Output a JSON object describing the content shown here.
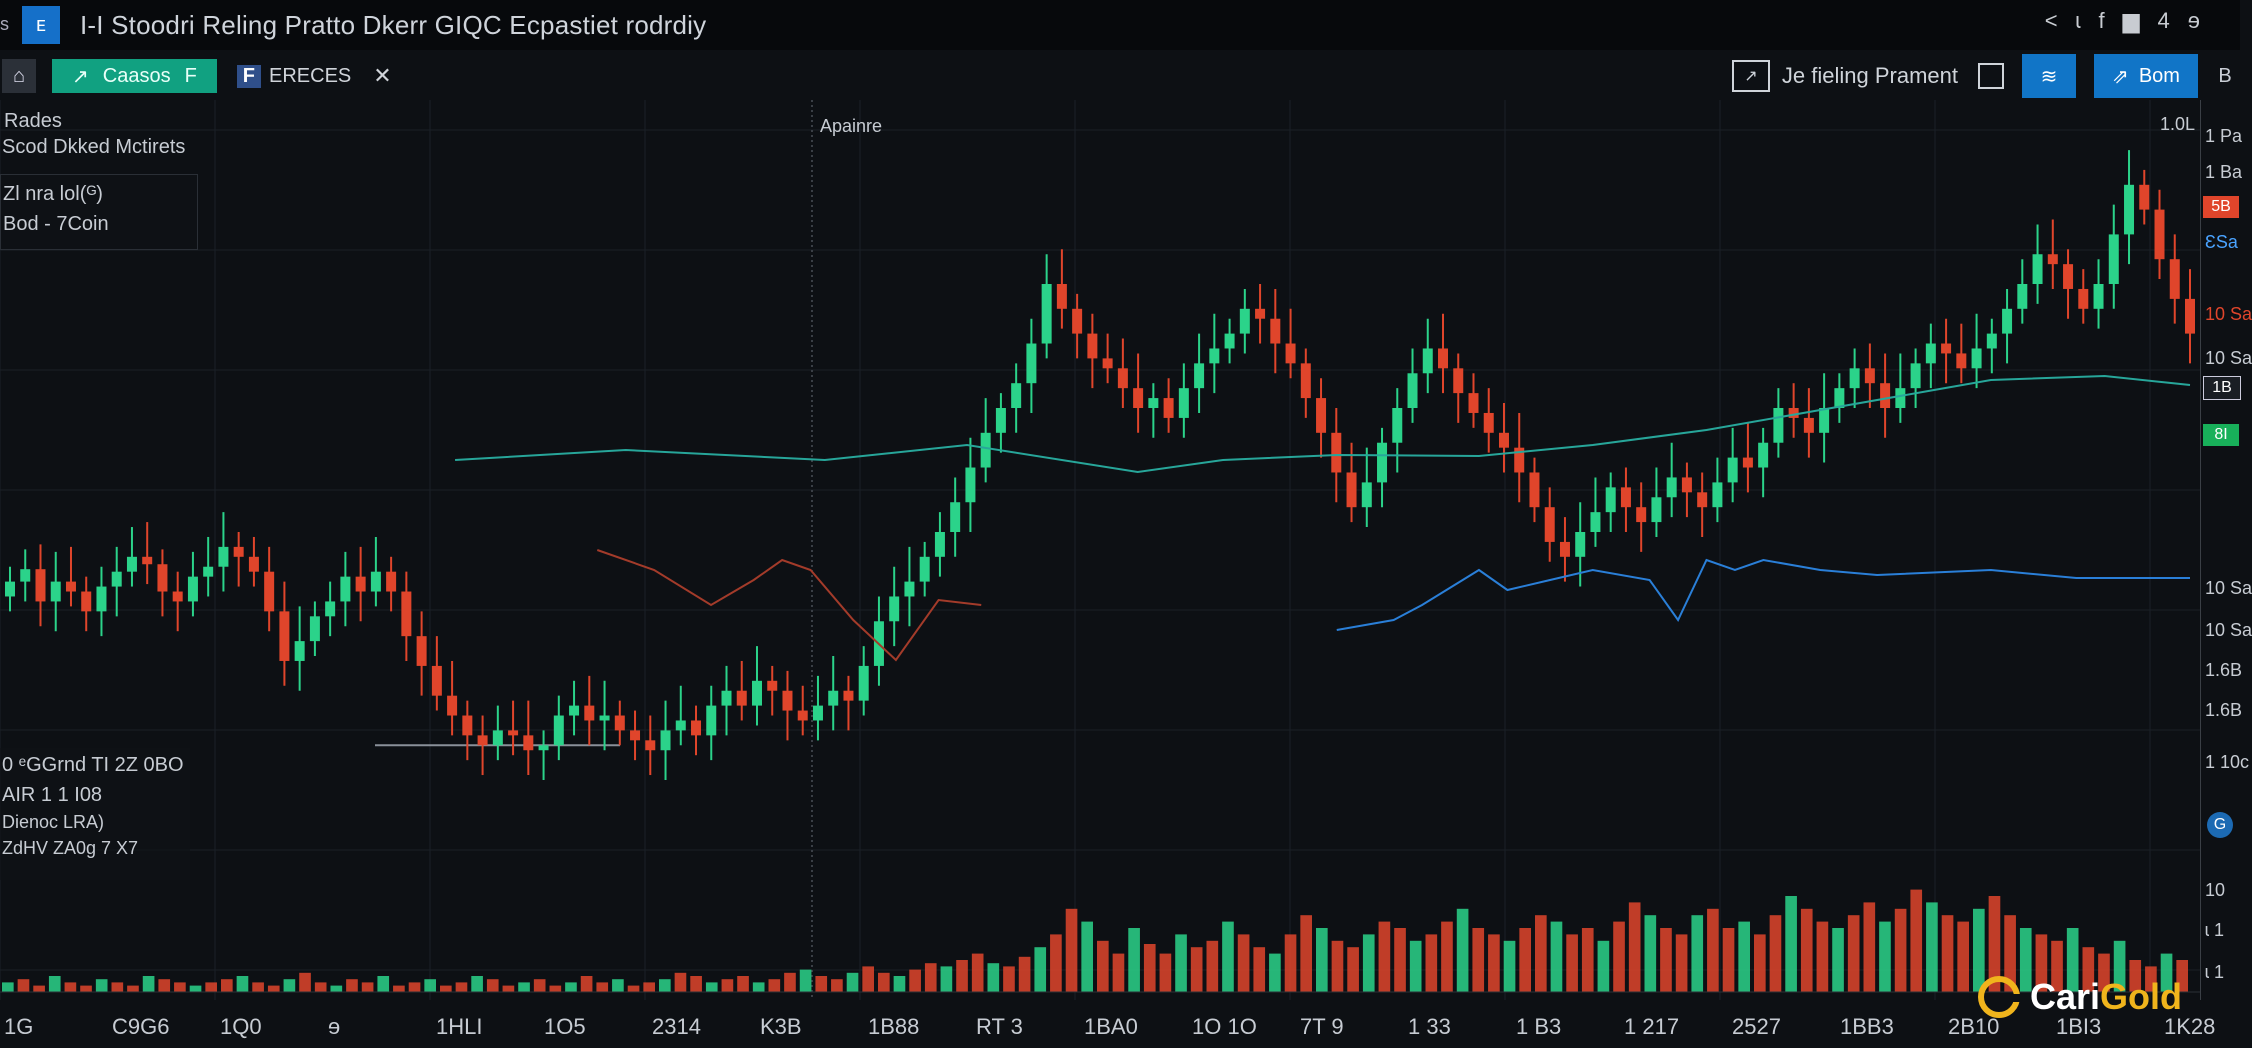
{
  "titlebar": {
    "left_glyph": "s",
    "app_icon": "chart-icon",
    "app_icon_glyph": "ᴇ",
    "title": "I-I Stoodri Reling Pratto Dkerr GIQC Ecpastiet rodrdiy",
    "right_icons": [
      "<",
      "ɩ",
      "f",
      "▆",
      "4",
      "ɘ"
    ]
  },
  "toolbar": {
    "home_glyph": "⌂",
    "assets_label": "Caasos",
    "assets_suffix": "F",
    "f_badge": "F",
    "ereces_label": "ERECES",
    "tool_glyph": "✕",
    "trading_icon_glyph": "↗",
    "trading_label": "Je fieling Prament",
    "btn1_glyph": "≋",
    "btn2_glyph": "⇗",
    "btn2_label": "Bom",
    "end_glyph": "B"
  },
  "overlays": {
    "top_left_1": "Rades",
    "top_left_2": "Scod Dkked Mctirets",
    "center_label": "Apainre",
    "box1_line1": "Zl nra lol(ᴳ)",
    "box1_line2": "Bod - 7Coin",
    "top_right_value": "1.0L",
    "box2_line1": "0 ᵉGGrnd TI 2Z 0BO",
    "box2_line2": "AIR 1 1 I08",
    "box2_line3": "Dienoc LRA)",
    "box2_line4": "ZdHV ZA0g 7 X7"
  },
  "right_axis": {
    "labels": [
      "1 Pa",
      "1 Ba",
      "ƐSa",
      "10 Sa",
      "10 Sa",
      "10 Sa",
      "10 Sa",
      "1.6B",
      "1.6B",
      "1 10c",
      "10",
      "ɩ 1",
      "ɩ 1"
    ],
    "badges": [
      {
        "text": "5B",
        "color": "#e0452b"
      },
      {
        "text": "1B",
        "color": "#1a1e24"
      },
      {
        "text": "8I",
        "color": "#18b05a"
      },
      {
        "text": "G",
        "color": "#1c6ab3"
      }
    ]
  },
  "bottom_axis": {
    "labels": [
      "1G",
      "C9G6",
      "1Q0",
      "ɘ",
      "1HLI",
      "1O5",
      "2314",
      "K3B",
      "1B88",
      "RT 3",
      "1BA0",
      "1O 1O",
      "7T 9",
      "1 33",
      "1 B3",
      "1 217",
      "2527",
      "1BB3",
      "2B10",
      "1BI3",
      "1K28"
    ]
  },
  "logo": {
    "part1": "Cari",
    "part2": "Gold",
    "icon": "carigold-logo-icon"
  },
  "colors": {
    "up": "#2bd38a",
    "down": "#e0452b",
    "line_teal": "#27a69a",
    "line_blue": "#2a7fd8",
    "line_red": "#a33b2a"
  },
  "chart_data": {
    "type": "candlestick",
    "title": "",
    "xlabel": "",
    "ylabel": "",
    "close_series": [
      400,
      405,
      392,
      400,
      396,
      388,
      398,
      404,
      410,
      407,
      396,
      392,
      402,
      406,
      414,
      410,
      404,
      388,
      368,
      376,
      386,
      392,
      402,
      396,
      404,
      396,
      378,
      366,
      354,
      346,
      338,
      334,
      340,
      338,
      332,
      334,
      346,
      350,
      344,
      346,
      340,
      336,
      332,
      340,
      344,
      338,
      350,
      356,
      350,
      360,
      356,
      348,
      344,
      350,
      356,
      352,
      366,
      384,
      394,
      400,
      410,
      420,
      432,
      446,
      460,
      470,
      480,
      496,
      520,
      510,
      500,
      490,
      486,
      478,
      470,
      474,
      466,
      478,
      488,
      494,
      500,
      510,
      506,
      496,
      488,
      474,
      460,
      444,
      430,
      440,
      456,
      470,
      484,
      494,
      486,
      476,
      468,
      460,
      454,
      444,
      430,
      416,
      410,
      420,
      428,
      438,
      430,
      424,
      434,
      442,
      436,
      430,
      440,
      450,
      446,
      456,
      470,
      466,
      460,
      470,
      478,
      486,
      480,
      470,
      478,
      488,
      496,
      492,
      486,
      494,
      500,
      510,
      520,
      532,
      528,
      518,
      510,
      520,
      540,
      560,
      550,
      530,
      514,
      500
    ],
    "series_lines": [
      {
        "color": "teal",
        "points": [
          [
            160,
            360
          ],
          [
            220,
            350
          ],
          [
            290,
            360
          ],
          [
            340,
            345
          ],
          [
            400,
            372
          ],
          [
            430,
            360
          ],
          [
            470,
            355
          ],
          [
            520,
            356
          ],
          [
            560,
            345
          ],
          [
            600,
            330
          ],
          [
            640,
            310
          ],
          [
            680,
            290
          ],
          [
            700,
            280
          ],
          [
            740,
            276
          ],
          [
            770,
            285
          ]
        ]
      },
      {
        "color": "blue",
        "points": [
          [
            470,
            530
          ],
          [
            490,
            520
          ],
          [
            500,
            505
          ],
          [
            520,
            470
          ],
          [
            530,
            490
          ],
          [
            545,
            480
          ],
          [
            560,
            470
          ],
          [
            580,
            480
          ],
          [
            590,
            520
          ],
          [
            600,
            460
          ],
          [
            610,
            470
          ],
          [
            620,
            460
          ],
          [
            640,
            470
          ],
          [
            660,
            475
          ],
          [
            700,
            470
          ],
          [
            730,
            478
          ],
          [
            770,
            478
          ]
        ]
      },
      {
        "color": "red",
        "points": [
          [
            210,
            450
          ],
          [
            230,
            470
          ],
          [
            250,
            505
          ],
          [
            265,
            480
          ],
          [
            275,
            460
          ],
          [
            285,
            470
          ],
          [
            300,
            520
          ],
          [
            315,
            560
          ],
          [
            330,
            500
          ],
          [
            345,
            505
          ]
        ]
      }
    ],
    "volume": [
      3,
      4,
      2,
      5,
      3,
      2,
      4,
      3,
      2,
      5,
      4,
      3,
      2,
      3,
      4,
      5,
      3,
      2,
      4,
      6,
      3,
      2,
      4,
      3,
      5,
      2,
      3,
      4,
      2,
      3,
      5,
      4,
      2,
      3,
      4,
      2,
      3,
      5,
      3,
      4,
      2,
      3,
      4,
      6,
      5,
      3,
      4,
      5,
      3,
      4,
      6,
      7,
      5,
      4,
      6,
      8,
      6,
      5,
      7,
      9,
      8,
      10,
      12,
      9,
      8,
      11,
      14,
      18,
      26,
      22,
      16,
      12,
      20,
      15,
      12,
      18,
      14,
      16,
      22,
      18,
      14,
      12,
      18,
      24,
      20,
      16,
      14,
      18,
      22,
      20,
      16,
      18,
      22,
      26,
      20,
      18,
      16,
      20,
      24,
      22,
      18,
      20,
      16,
      22,
      28,
      24,
      20,
      18,
      24,
      26,
      20,
      22,
      18,
      24,
      30,
      26,
      22,
      20,
      24,
      28,
      22,
      26,
      32,
      28,
      24,
      22,
      26,
      30,
      24,
      20,
      18,
      16,
      20,
      14,
      12,
      16,
      10,
      8,
      12,
      10
    ]
  }
}
